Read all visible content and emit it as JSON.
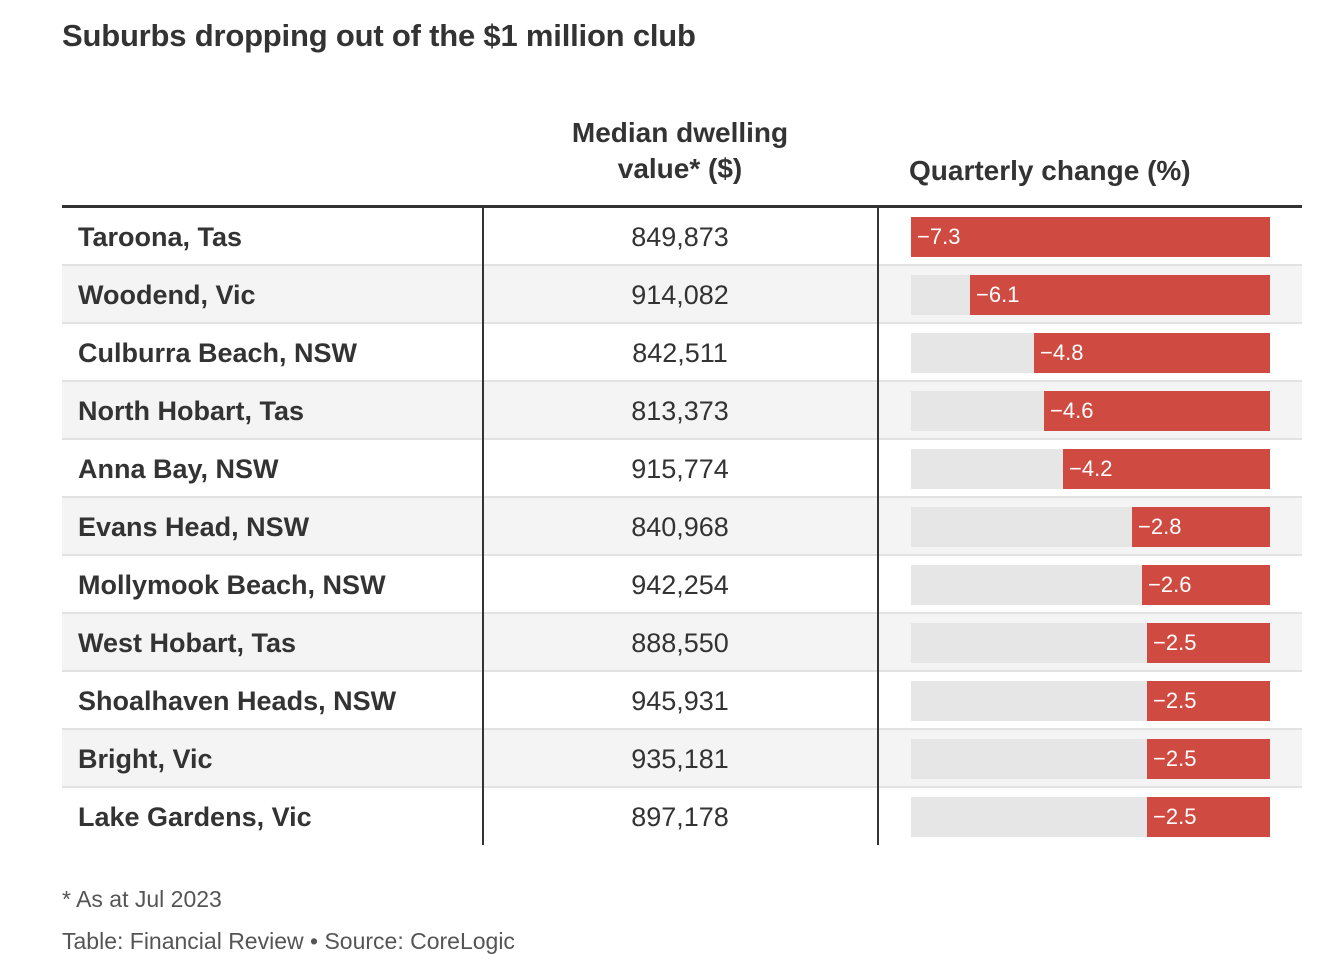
{
  "title": "Suburbs dropping out of the $1 million club",
  "columns": {
    "value_line1": "Median dwelling",
    "value_line2": "value* ($)",
    "change": "Quarterly change (%)"
  },
  "footnote": "* As at Jul 2023",
  "source": "Table: Financial Review • Source: CoreLogic",
  "colors": {
    "bar": "#cf4a41",
    "track": "#e6e6e6",
    "text": "#333333"
  },
  "chart_data": {
    "type": "table",
    "bar_scale_max": 7.3,
    "rows": [
      {
        "suburb": "Taroona, Tas",
        "value": "849,873",
        "change": -7.3,
        "change_label": "−7.3"
      },
      {
        "suburb": "Woodend, Vic",
        "value": "914,082",
        "change": -6.1,
        "change_label": "−6.1"
      },
      {
        "suburb": "Culburra Beach, NSW",
        "value": "842,511",
        "change": -4.8,
        "change_label": "−4.8"
      },
      {
        "suburb": "North Hobart, Tas",
        "value": "813,373",
        "change": -4.6,
        "change_label": "−4.6"
      },
      {
        "suburb": "Anna Bay, NSW",
        "value": "915,774",
        "change": -4.2,
        "change_label": "−4.2"
      },
      {
        "suburb": "Evans Head, NSW",
        "value": "840,968",
        "change": -2.8,
        "change_label": "−2.8"
      },
      {
        "suburb": "Mollymook Beach, NSW",
        "value": "942,254",
        "change": -2.6,
        "change_label": "−2.6"
      },
      {
        "suburb": "West Hobart, Tas",
        "value": "888,550",
        "change": -2.5,
        "change_label": "−2.5"
      },
      {
        "suburb": "Shoalhaven Heads, NSW",
        "value": "945,931",
        "change": -2.5,
        "change_label": "−2.5"
      },
      {
        "suburb": "Bright, Vic",
        "value": "935,181",
        "change": -2.5,
        "change_label": "−2.5"
      },
      {
        "suburb": "Lake Gardens, Vic",
        "value": "897,178",
        "change": -2.5,
        "change_label": "−2.5"
      }
    ]
  }
}
